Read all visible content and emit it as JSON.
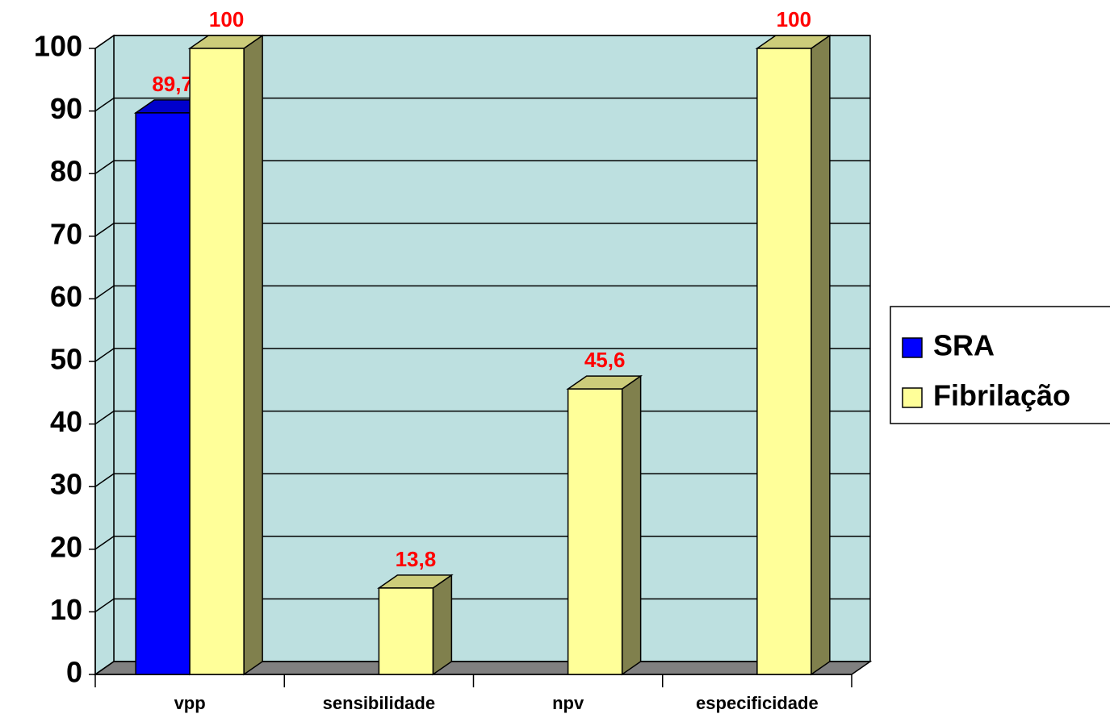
{
  "chart_data": {
    "type": "bar3d",
    "categories": [
      "vpp",
      "sensibilidade",
      "npv",
      "especificidade"
    ],
    "series": [
      {
        "name": "SRA",
        "color": "#0000ff",
        "values": [
          89.7,
          null,
          null,
          null
        ],
        "value_labels": [
          "89,7",
          null,
          null,
          null
        ]
      },
      {
        "name": "Fibrilação",
        "color": "#ffff99",
        "values": [
          100,
          13.8,
          45.6,
          100
        ],
        "value_labels": [
          "100",
          "13,8",
          "45,6",
          "100"
        ]
      }
    ],
    "ylim": [
      0,
      100
    ],
    "yticks": [
      0,
      10,
      20,
      30,
      40,
      50,
      60,
      70,
      80,
      90,
      100
    ],
    "grid": true,
    "legend": "right",
    "wall_color": "#bde0e0",
    "floor_color": "#808080",
    "label_color": "#ff0000"
  }
}
